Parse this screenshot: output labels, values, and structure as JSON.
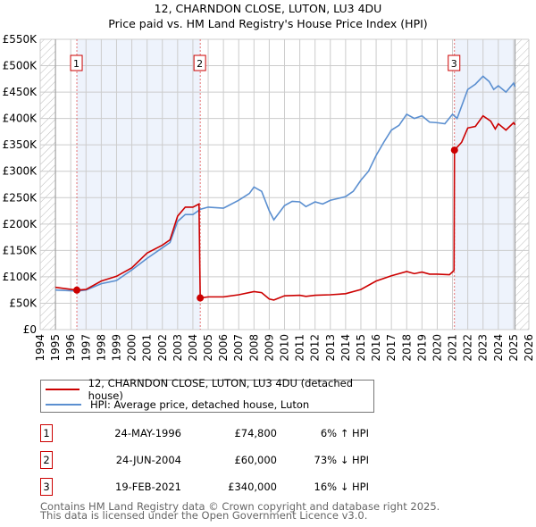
{
  "chart_data": {
    "type": "line",
    "title": "12, CHARNDON CLOSE, LUTON, LU3 4DU",
    "subtitle": "Price paid vs. HM Land Registry's House Price Index (HPI)",
    "xlim": [
      1994,
      2026
    ],
    "ylim": [
      0,
      550000
    ],
    "x_ticks": [
      "1994",
      "1995",
      "1996",
      "1997",
      "1998",
      "1999",
      "2000",
      "2001",
      "2002",
      "2003",
      "2004",
      "2005",
      "2006",
      "2007",
      "2008",
      "2009",
      "2010",
      "2011",
      "2012",
      "2013",
      "2014",
      "2015",
      "2016",
      "2017",
      "2018",
      "2019",
      "2020",
      "2021",
      "2022",
      "2023",
      "2024",
      "2025",
      "2026"
    ],
    "y_ticks": [
      {
        "v": 0,
        "label": "£0"
      },
      {
        "v": 50000,
        "label": "£50K"
      },
      {
        "v": 100000,
        "label": "£100K"
      },
      {
        "v": 150000,
        "label": "£150K"
      },
      {
        "v": 200000,
        "label": "£200K"
      },
      {
        "v": 250000,
        "label": "£250K"
      },
      {
        "v": 300000,
        "label": "£300K"
      },
      {
        "v": 350000,
        "label": "£350K"
      },
      {
        "v": 400000,
        "label": "£400K"
      },
      {
        "v": 450000,
        "label": "£450K"
      },
      {
        "v": 500000,
        "label": "£500K"
      },
      {
        "v": 550000,
        "label": "£550K"
      }
    ],
    "grid": true,
    "data_range": [
      1995,
      2025.1
    ],
    "series": [
      {
        "name": "12, CHARNDON CLOSE, LUTON, LU3 4DU (detached house)",
        "color": "#cc0000",
        "points": [
          [
            1995,
            80
          ],
          [
            1996.4,
            74.8
          ],
          [
            1997,
            76
          ],
          [
            1998,
            92
          ],
          [
            1999,
            101
          ],
          [
            2000,
            117
          ],
          [
            2001,
            145
          ],
          [
            2002,
            160
          ],
          [
            2002.5,
            170
          ],
          [
            2003,
            215
          ],
          [
            2003.5,
            232
          ],
          [
            2004,
            232
          ],
          [
            2004.4,
            238
          ],
          [
            2004.48,
            60
          ],
          [
            2005,
            62
          ],
          [
            2006,
            62
          ],
          [
            2007,
            66
          ],
          [
            2008,
            72
          ],
          [
            2008.5,
            70
          ],
          [
            2009,
            58
          ],
          [
            2009.3,
            56
          ],
          [
            2010,
            64
          ],
          [
            2011,
            65
          ],
          [
            2011.4,
            63
          ],
          [
            2012,
            65
          ],
          [
            2013,
            66
          ],
          [
            2014,
            68
          ],
          [
            2015,
            76
          ],
          [
            2016,
            92
          ],
          [
            2017,
            102
          ],
          [
            2018,
            110
          ],
          [
            2018.5,
            106
          ],
          [
            2019,
            109
          ],
          [
            2019.5,
            105
          ],
          [
            2020,
            105
          ],
          [
            2020.8,
            104
          ],
          [
            2021.1,
            112
          ],
          [
            2021.13,
            340
          ],
          [
            2021.6,
            355
          ],
          [
            2022,
            382
          ],
          [
            2022.5,
            385
          ],
          [
            2023,
            405
          ],
          [
            2023.5,
            395
          ],
          [
            2023.8,
            380
          ],
          [
            2024,
            390
          ],
          [
            2024.5,
            378
          ],
          [
            2025,
            392
          ],
          [
            2025.1,
            388
          ]
        ]
      },
      {
        "name": "HPI: Average price, detached house, Luton",
        "color": "#5b8fd0",
        "points": [
          [
            1995,
            75
          ],
          [
            1996.4,
            73
          ],
          [
            1997,
            75
          ],
          [
            1998,
            87
          ],
          [
            1999,
            93
          ],
          [
            2000,
            113
          ],
          [
            2001,
            135
          ],
          [
            2002,
            155
          ],
          [
            2002.5,
            165
          ],
          [
            2003,
            205
          ],
          [
            2003.5,
            218
          ],
          [
            2004,
            218
          ],
          [
            2004.5,
            228
          ],
          [
            2005,
            232
          ],
          [
            2006,
            230
          ],
          [
            2007,
            245
          ],
          [
            2007.7,
            258
          ],
          [
            2008,
            270
          ],
          [
            2008.5,
            262
          ],
          [
            2009,
            225
          ],
          [
            2009.3,
            208
          ],
          [
            2010,
            235
          ],
          [
            2010.5,
            243
          ],
          [
            2011,
            242
          ],
          [
            2011.4,
            233
          ],
          [
            2012,
            242
          ],
          [
            2012.5,
            238
          ],
          [
            2013,
            245
          ],
          [
            2014,
            252
          ],
          [
            2014.5,
            262
          ],
          [
            2015,
            283
          ],
          [
            2015.5,
            300
          ],
          [
            2016,
            330
          ],
          [
            2016.5,
            355
          ],
          [
            2017,
            378
          ],
          [
            2017.5,
            387
          ],
          [
            2018,
            408
          ],
          [
            2018.5,
            400
          ],
          [
            2019,
            405
          ],
          [
            2019.5,
            393
          ],
          [
            2020,
            392
          ],
          [
            2020.5,
            390
          ],
          [
            2021,
            408
          ],
          [
            2021.3,
            400
          ],
          [
            2022,
            455
          ],
          [
            2022.5,
            465
          ],
          [
            2023,
            480
          ],
          [
            2023.4,
            470
          ],
          [
            2023.7,
            455
          ],
          [
            2024,
            462
          ],
          [
            2024.5,
            450
          ],
          [
            2025,
            467
          ],
          [
            2025.1,
            460
          ]
        ]
      }
    ],
    "y_units": "thousands GBP",
    "sales": [
      {
        "label": "1",
        "x": 1996.4,
        "y": 74.8,
        "date": "24-MAY-1996",
        "price": "£74,800",
        "hpi": "6% ↑ HPI"
      },
      {
        "label": "2",
        "x": 2004.48,
        "y": 60,
        "date": "24-JUN-2004",
        "price": "£60,000",
        "hpi": "73% ↓ HPI"
      },
      {
        "label": "3",
        "x": 2021.13,
        "y": 340,
        "date": "19-FEB-2021",
        "price": "£340,000",
        "hpi": "16% ↓ HPI"
      }
    ]
  },
  "footer": {
    "line1": "Contains HM Land Registry data © Crown copyright and database right 2025.",
    "line2": "This data is licensed under the Open Government Licence v3.0."
  }
}
